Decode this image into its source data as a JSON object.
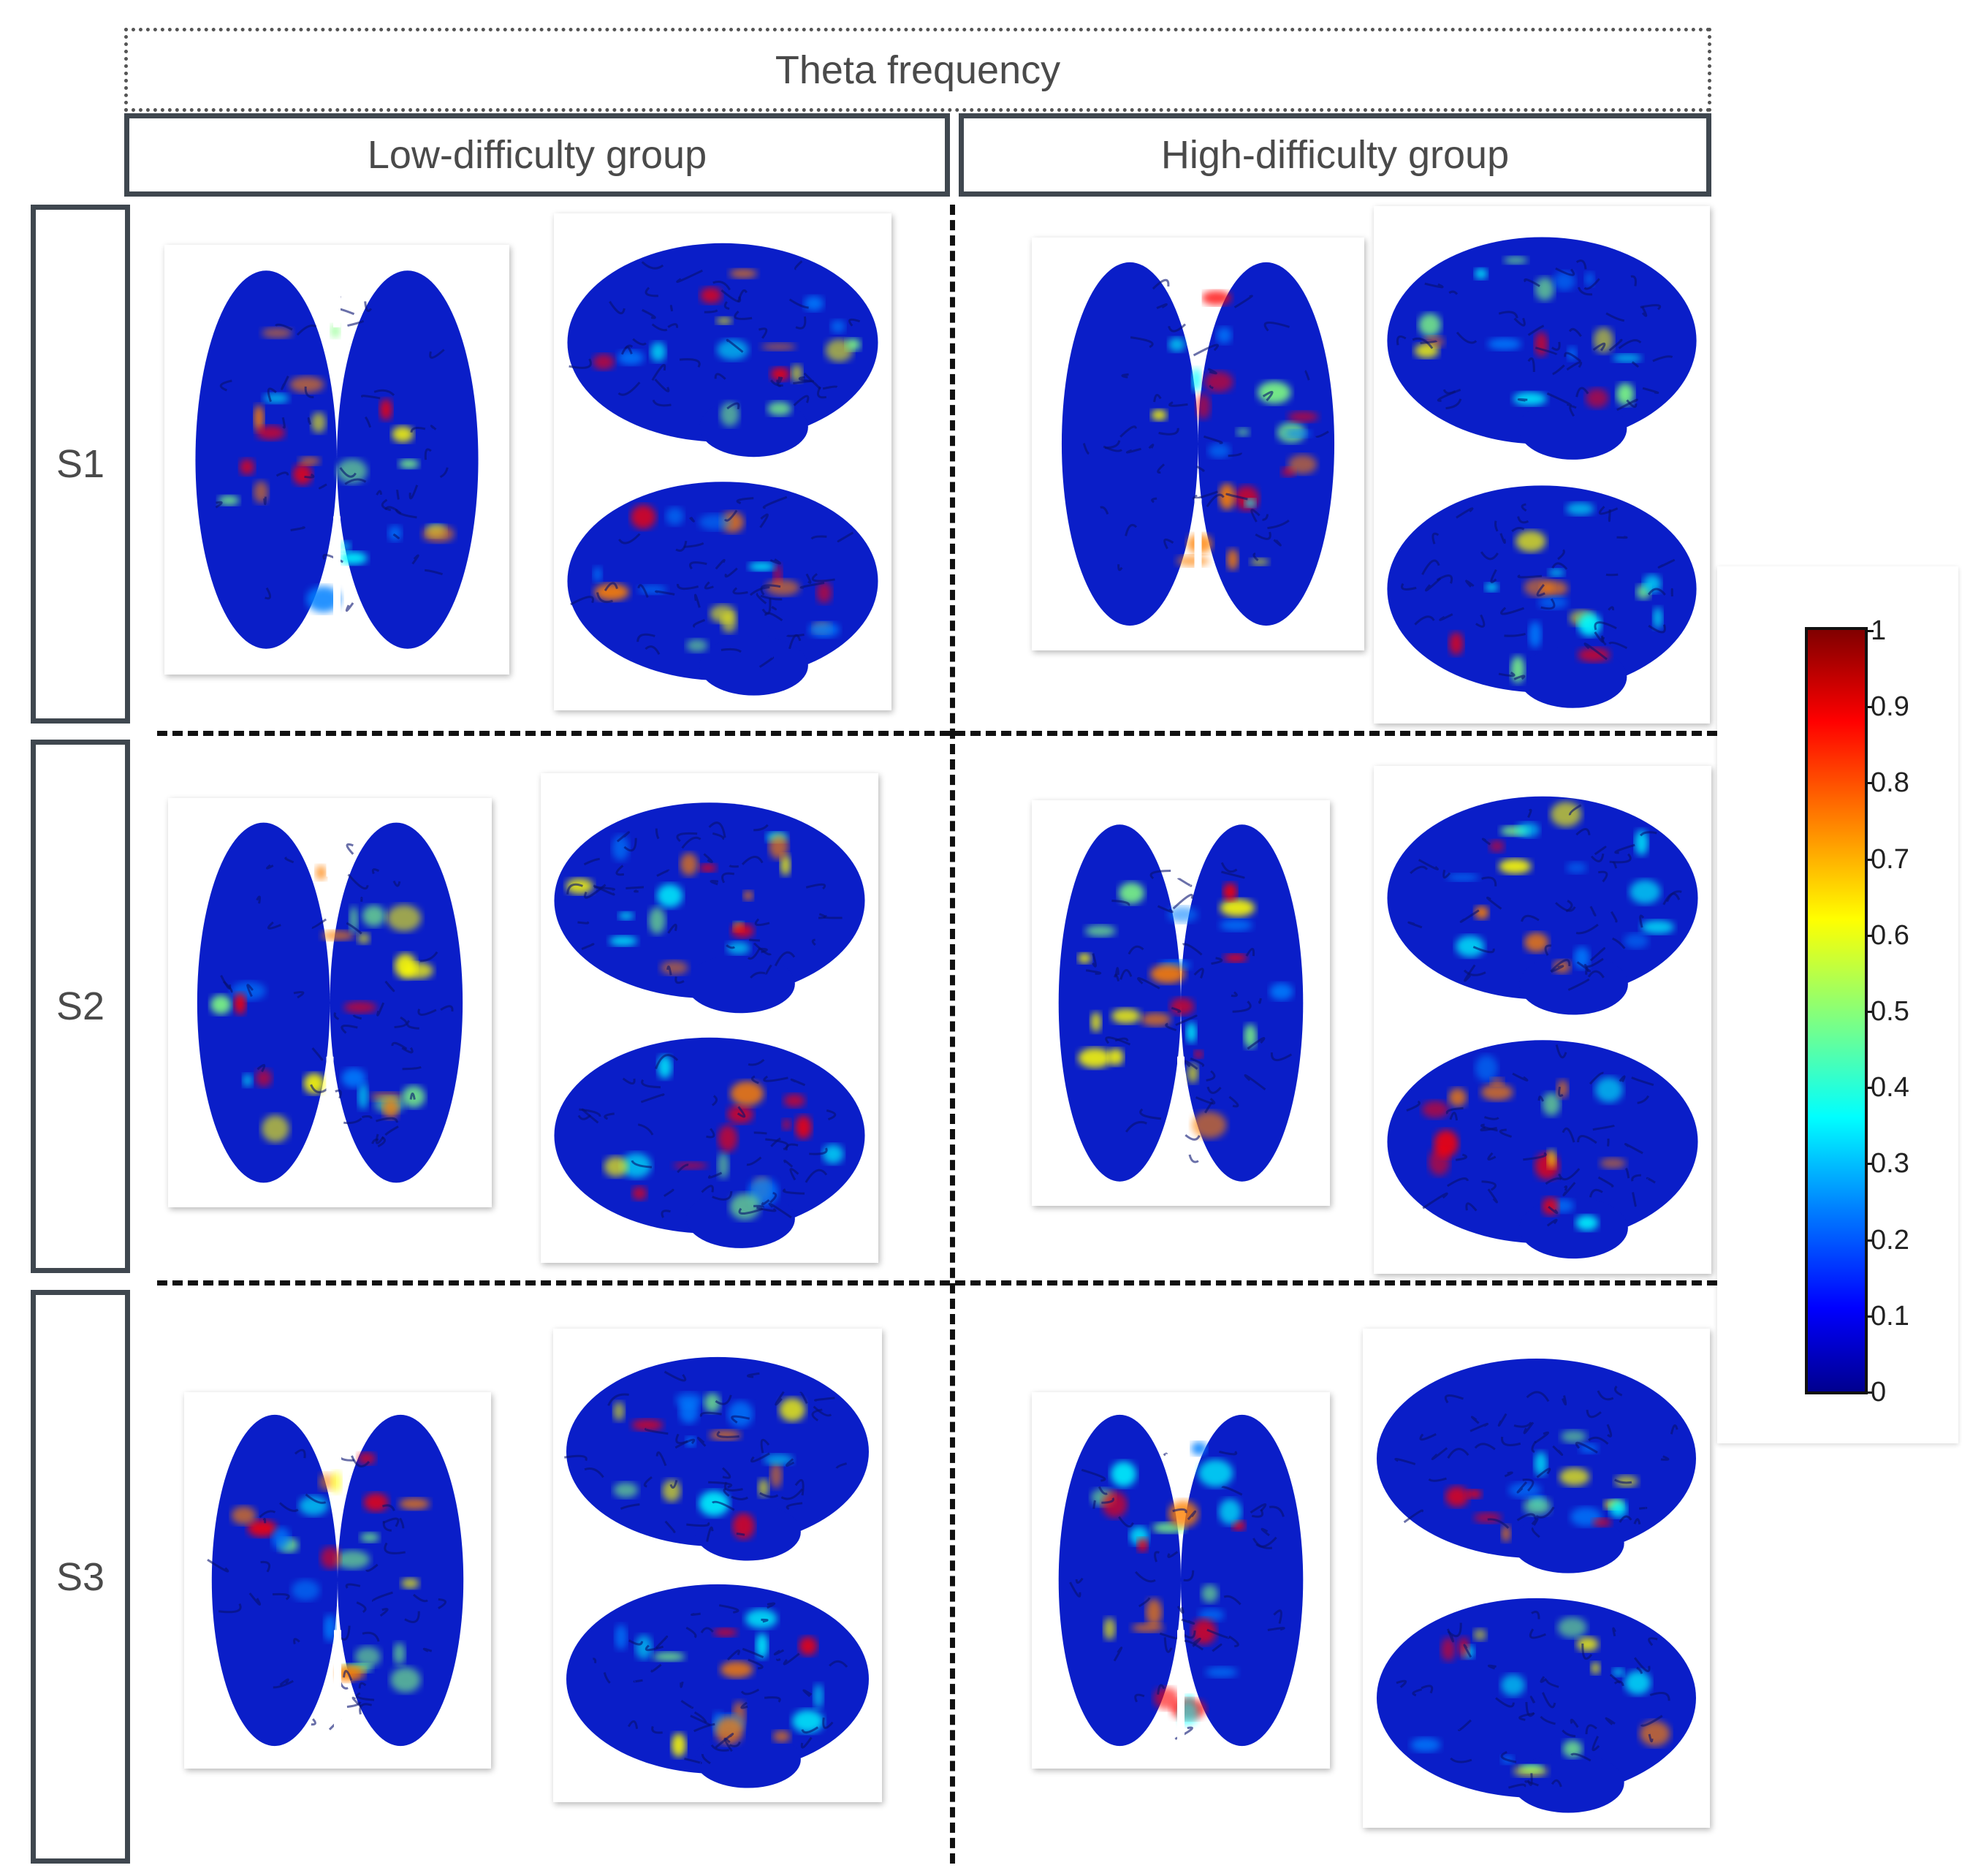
{
  "header": {
    "title": "Theta frequency"
  },
  "groups": [
    {
      "label": "Low-difficulty group"
    },
    {
      "label": "High-difficulty group"
    }
  ],
  "rows": [
    {
      "label": "S1"
    },
    {
      "label": "S2"
    },
    {
      "label": "S3"
    }
  ],
  "colorbar": {
    "ticks": [
      "0",
      "0.1",
      "0.2",
      "0.3",
      "0.4",
      "0.5",
      "0.6",
      "0.7",
      "0.8",
      "0.9",
      "1"
    ],
    "range": [
      0,
      1
    ],
    "colormap": [
      "#00008f",
      "#0000ff",
      "#0080ff",
      "#00ffff",
      "#80ff80",
      "#ffff00",
      "#ff8000",
      "#ff0000",
      "#800000"
    ]
  },
  "colors": {
    "border": "#3f474f",
    "text": "#4a4a4a",
    "brain_base": "#0a1ec8"
  }
}
